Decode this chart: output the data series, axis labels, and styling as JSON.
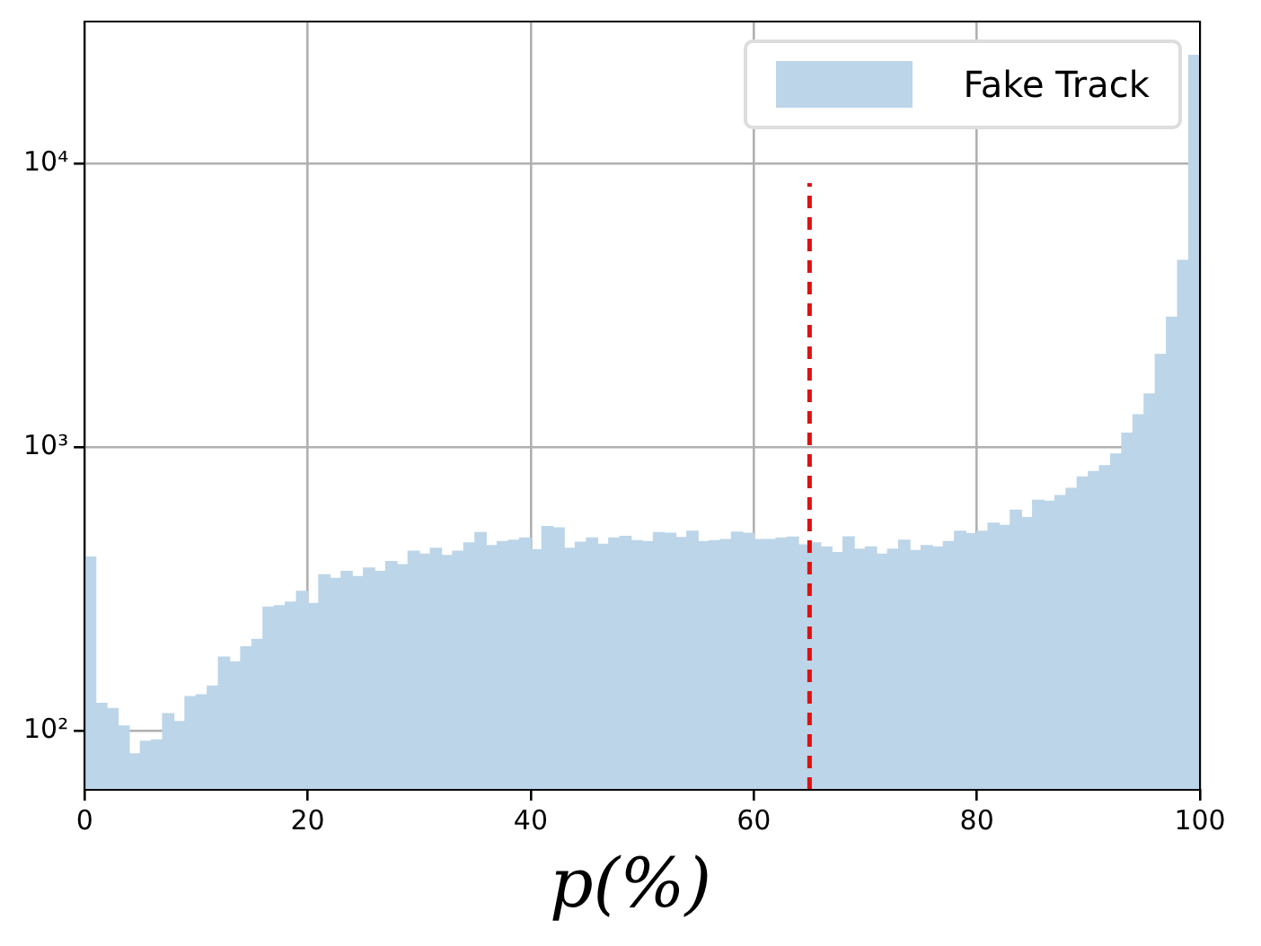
{
  "chart_data": {
    "type": "histogram",
    "xlabel": "p(%)",
    "bins": [
      0,
      1,
      2,
      3,
      4,
      5,
      6,
      7,
      8,
      9,
      10,
      11,
      12,
      13,
      14,
      15,
      16,
      17,
      18,
      19,
      20,
      21,
      22,
      23,
      24,
      25,
      26,
      27,
      28,
      29,
      30,
      31,
      32,
      33,
      34,
      35,
      36,
      37,
      38,
      39,
      40,
      41,
      42,
      43,
      44,
      45,
      46,
      47,
      48,
      49,
      50,
      51,
      52,
      53,
      54,
      55,
      56,
      57,
      58,
      59,
      60,
      61,
      62,
      63,
      64,
      65,
      66,
      67,
      68,
      69,
      70,
      71,
      72,
      73,
      74,
      75,
      76,
      77,
      78,
      79,
      80,
      81,
      82,
      83,
      84,
      85,
      86,
      87,
      88,
      89,
      90,
      91,
      92,
      93,
      94,
      95,
      96,
      97,
      98,
      99,
      100
    ],
    "series": [
      {
        "name": "Fake Track",
        "color": "#bcd5e8",
        "values": [
          410,
          125,
          120,
          104,
          83,
          92,
          93,
          115,
          108,
          132,
          134,
          144,
          182,
          175,
          198,
          210,
          273,
          276,
          284,
          310,
          281,
          355,
          345,
          365,
          350,
          375,
          365,
          395,
          385,
          430,
          420,
          440,
          415,
          430,
          460,
          500,
          450,
          465,
          470,
          478,
          435,
          525,
          519,
          440,
          462,
          478,
          455,
          478,
          485,
          468,
          465,
          500,
          497,
          480,
          505,
          465,
          468,
          472,
          502,
          497,
          472,
          472,
          478,
          482,
          452,
          460,
          445,
          425,
          483,
          437,
          445,
          420,
          437,
          470,
          432,
          450,
          445,
          465,
          505,
          495,
          505,
          540,
          530,
          600,
          565,
          650,
          645,
          675,
          715,
          785,
          820,
          860,
          945,
          1120,
          1300,
          1540,
          2120,
          2870,
          4550,
          24000
        ]
      }
    ],
    "xlim": [
      0,
      100
    ],
    "xticks": [
      0,
      20,
      40,
      60,
      80,
      100
    ],
    "log": true,
    "ylim": [
      62,
      31600
    ],
    "yticks": [
      {
        "value": 100,
        "label": "10²"
      },
      {
        "value": 1000,
        "label": "10³"
      },
      {
        "value": 10000,
        "label": "10⁴"
      }
    ],
    "grid": true,
    "legend": "top right",
    "ref_lines": [
      {
        "axis": "x",
        "value": 65,
        "color": "#dd1111",
        "line_style": "dashed"
      }
    ]
  }
}
